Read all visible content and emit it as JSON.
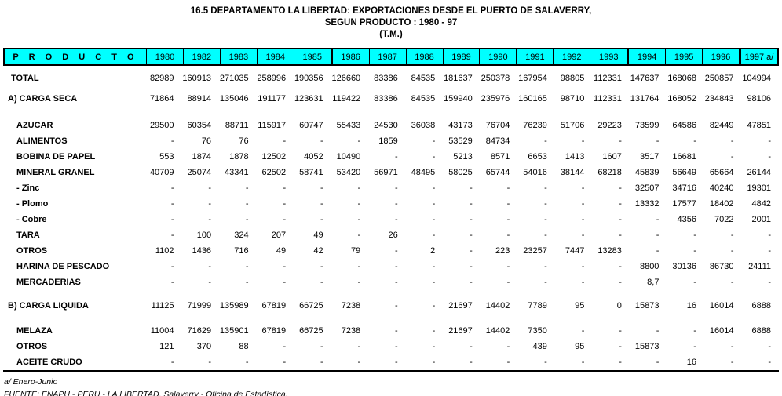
{
  "title": {
    "line1": "16.5  DEPARTAMENTO LA LIBERTAD:  EXPORTACIONES DESDE EL PUERTO DE SALAVERRY,",
    "line2": "SEGUN PRODUCTO : 1980 - 97",
    "line3": "(T.M.)"
  },
  "colors": {
    "header_bg": "#00FFFF",
    "border": "#000000",
    "text": "#000000"
  },
  "table": {
    "product_header": "P R O D U C T O",
    "columns": [
      "1980",
      "1982",
      "1983",
      "1984",
      "1985",
      "1986",
      "1987",
      "1988",
      "1989",
      "1990",
      "1991",
      "1992",
      "1993",
      "1994",
      "1995",
      "1996",
      "1997 a/"
    ],
    "rows": [
      {
        "label": "TOTAL",
        "type": "total",
        "gap_after": 6,
        "values": [
          "82989",
          "160913",
          "271035",
          "258996",
          "190356",
          "126660",
          "83386",
          "84535",
          "181637",
          "250378",
          "167954",
          "98805",
          "112331",
          "147637",
          "168068",
          "250857",
          "104994"
        ]
      },
      {
        "label": "A) CARGA SECA",
        "type": "section",
        "gap_after": 14,
        "values": [
          "71864",
          "88914",
          "135046",
          "191177",
          "123631",
          "119422",
          "83386",
          "84535",
          "159940",
          "235976",
          "160165",
          "98710",
          "112331",
          "131764",
          "168052",
          "234843",
          "98106"
        ]
      },
      {
        "label": "AZUCAR",
        "type": "item",
        "values": [
          "29500",
          "60354",
          "88711",
          "115917",
          "60747",
          "55433",
          "24530",
          "36038",
          "43173",
          "76704",
          "76239",
          "51706",
          "29223",
          "73599",
          "64586",
          "82449",
          "47851"
        ]
      },
      {
        "label": "ALIMENTOS",
        "type": "item",
        "values": [
          "-",
          "76",
          "76",
          "-",
          "-",
          "-",
          "1859",
          "-",
          "53529",
          "84734",
          "-",
          "-",
          "-",
          "-",
          "-",
          "-",
          "-"
        ]
      },
      {
        "label": "BOBINA DE PAPEL",
        "type": "item",
        "values": [
          "553",
          "1874",
          "1878",
          "12502",
          "4052",
          "10490",
          "-",
          "-",
          "5213",
          "8571",
          "6653",
          "1413",
          "1607",
          "3517",
          "16681",
          "-",
          "-"
        ]
      },
      {
        "label": "MINERAL GRANEL",
        "type": "item",
        "values": [
          "40709",
          "25074",
          "43341",
          "62502",
          "58741",
          "53420",
          "56971",
          "48495",
          "58025",
          "65744",
          "54016",
          "38144",
          "68218",
          "45839",
          "56649",
          "65664",
          "26144"
        ]
      },
      {
        "label": "- Zinc",
        "type": "subitem",
        "values": [
          "-",
          "-",
          "-",
          "-",
          "-",
          "-",
          "-",
          "-",
          "-",
          "-",
          "-",
          "-",
          "-",
          "32507",
          "34716",
          "40240",
          "19301"
        ]
      },
      {
        "label": "- Plomo",
        "type": "subitem",
        "values": [
          "-",
          "-",
          "-",
          "-",
          "-",
          "-",
          "-",
          "-",
          "-",
          "-",
          "-",
          "-",
          "-",
          "13332",
          "17577",
          "18402",
          "4842"
        ]
      },
      {
        "label": "- Cobre",
        "type": "subitem",
        "values": [
          "-",
          "-",
          "-",
          "-",
          "-",
          "-",
          "-",
          "-",
          "-",
          "-",
          "-",
          "-",
          "-",
          "-",
          "4356",
          "7022",
          "2001"
        ]
      },
      {
        "label": "TARA",
        "type": "item",
        "values": [
          "-",
          "100",
          "324",
          "207",
          "49",
          "-",
          "26",
          "-",
          "-",
          "-",
          "-",
          "-",
          "-",
          "-",
          "-",
          "-",
          "-"
        ]
      },
      {
        "label": "OTROS",
        "type": "item",
        "values": [
          "1102",
          "1436",
          "716",
          "49",
          "42",
          "79",
          "-",
          "2",
          "-",
          "223",
          "23257",
          "7447",
          "13283",
          "-",
          "-",
          "-",
          "-"
        ]
      },
      {
        "label": "HARINA DE PESCADO",
        "type": "item",
        "values": [
          "-",
          "-",
          "-",
          "-",
          "-",
          "-",
          "-",
          "-",
          "-",
          "-",
          "-",
          "-",
          "-",
          "8800",
          "30136",
          "86730",
          "24111"
        ]
      },
      {
        "label": "MERCADERIAS",
        "type": "item",
        "gap_after": 10,
        "values": [
          "-",
          "-",
          "-",
          "-",
          "-",
          "-",
          "-",
          "-",
          "-",
          "-",
          "-",
          "-",
          "-",
          "8,7",
          "-",
          "-",
          "-"
        ]
      },
      {
        "label": "B) CARGA LIQUIDA",
        "type": "section",
        "gap_after": 12,
        "values": [
          "11125",
          "71999",
          "135989",
          "67819",
          "66725",
          "7238",
          "-",
          "-",
          "21697",
          "14402",
          "7789",
          "95",
          "0",
          "15873",
          "16",
          "16014",
          "6888"
        ]
      },
      {
        "label": "MELAZA",
        "type": "item",
        "values": [
          "11004",
          "71629",
          "135901",
          "67819",
          "66725",
          "7238",
          "-",
          "-",
          "21697",
          "14402",
          "7350",
          "-",
          "-",
          "-",
          "-",
          "16014",
          "6888"
        ]
      },
      {
        "label": "OTROS",
        "type": "item",
        "values": [
          "121",
          "370",
          "88",
          "-",
          "-",
          "-",
          "-",
          "-",
          "-",
          "-",
          "439",
          "95",
          "-",
          "15873",
          "-",
          "-",
          "-"
        ]
      },
      {
        "label": "ACEITE CRUDO",
        "type": "item",
        "values": [
          "-",
          "-",
          "-",
          "-",
          "-",
          "-",
          "-",
          "-",
          "-",
          "-",
          "-",
          "-",
          "-",
          "-",
          "16",
          "-",
          "-"
        ]
      }
    ]
  },
  "footnotes": {
    "note": "a/ Enero-Junio",
    "source": "FUENTE: ENAPU - PERU - LA LIBERTAD, Salaverry - Oficina de Estadística."
  }
}
